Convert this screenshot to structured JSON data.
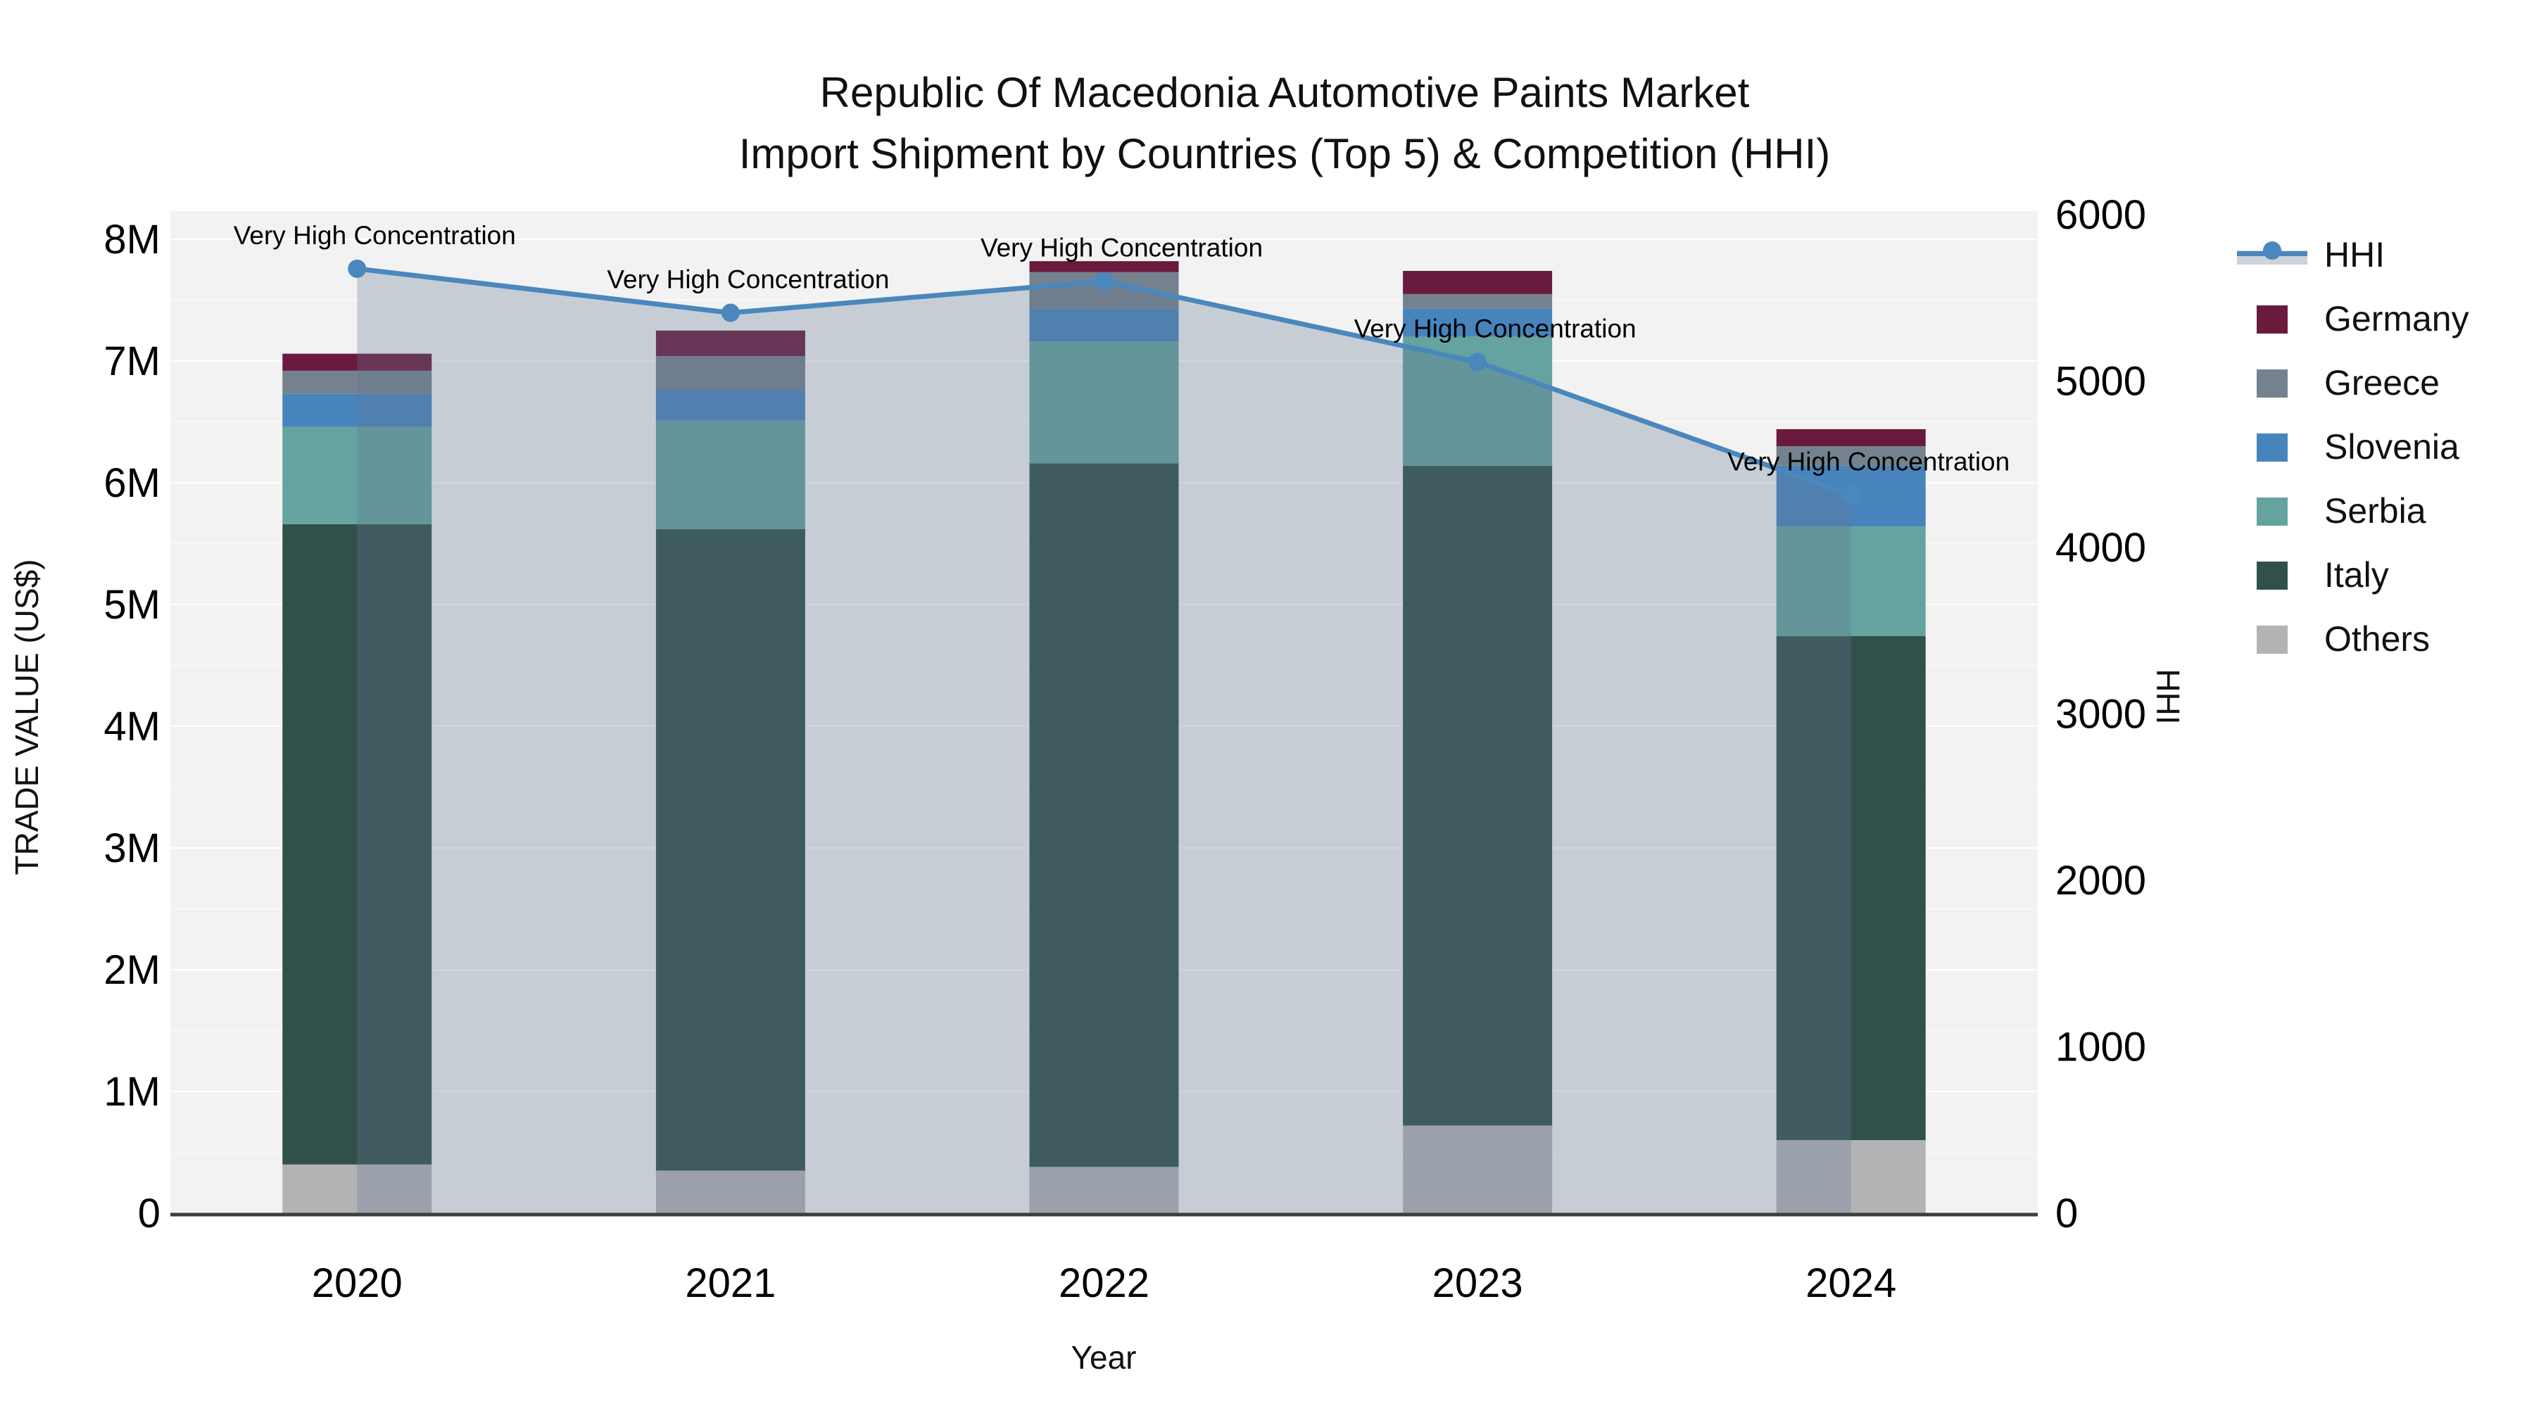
{
  "title": {
    "line1": "Republic Of Macedonia Automotive Paints Market",
    "line2": "Import Shipment by Countries (Top 5) & Competition (HHI)"
  },
  "axes": {
    "left": {
      "title": "TRADE VALUE (US$)",
      "tick_labels": [
        "0",
        "1M",
        "2M",
        "3M",
        "4M",
        "5M",
        "6M",
        "7M",
        "8M"
      ]
    },
    "right": {
      "title": "HHI",
      "tick_labels": [
        "0",
        "1000",
        "2000",
        "3000",
        "4000",
        "5000",
        "6000"
      ]
    },
    "x": {
      "title": "Year",
      "tick_labels": [
        "2020",
        "2021",
        "2022",
        "2023",
        "2024"
      ]
    }
  },
  "legend": [
    {
      "label": "HHI",
      "kind": "line"
    },
    {
      "label": "Germany",
      "kind": "swatch"
    },
    {
      "label": "Greece",
      "kind": "swatch"
    },
    {
      "label": "Slovenia",
      "kind": "swatch"
    },
    {
      "label": "Serbia",
      "kind": "swatch"
    },
    {
      "label": "Italy",
      "kind": "swatch"
    },
    {
      "label": "Others",
      "kind": "swatch"
    }
  ],
  "colors": {
    "Germany": "#691A3D",
    "Greece": "#74828F",
    "Slovenia": "#4884BC",
    "Serbia": "#64A3A0",
    "Italy": "#31504B",
    "Others": "#B2B3B5",
    "hhi_line": "#4A87BD",
    "hhi_area": "rgba(100,120,145,0.30)",
    "plot_bg": "#F2F2F2",
    "grid_major": "rgba(255,255,255,0.95)",
    "grid_minor": "rgba(255,255,255,0.55)",
    "axis_line": "#3D3D3D",
    "text": "#000000"
  },
  "chart_data": {
    "type": "bar",
    "stacked": true,
    "categories": [
      "2020",
      "2021",
      "2022",
      "2023",
      "2024"
    ],
    "unit": "million US$",
    "series": [
      {
        "name": "Others",
        "values": [
          0.4,
          0.35,
          0.38,
          0.72,
          0.6
        ]
      },
      {
        "name": "Italy",
        "values": [
          5.26,
          5.27,
          5.78,
          5.42,
          4.14
        ]
      },
      {
        "name": "Serbia",
        "values": [
          0.8,
          0.89,
          1.0,
          1.06,
          0.9
        ]
      },
      {
        "name": "Slovenia",
        "values": [
          0.27,
          0.25,
          0.27,
          0.23,
          0.5
        ]
      },
      {
        "name": "Greece",
        "values": [
          0.19,
          0.28,
          0.3,
          0.12,
          0.16
        ]
      },
      {
        "name": "Germany",
        "values": [
          0.14,
          0.21,
          0.09,
          0.19,
          0.14
        ]
      }
    ],
    "bar_totals_millions": [
      7.06,
      7.25,
      7.82,
      7.74,
      6.44
    ],
    "line_series": {
      "name": "HHI",
      "axis": "right",
      "fill": "tozeroy",
      "values": [
        5675,
        5410,
        5600,
        5115,
        4315
      ]
    },
    "point_annotations": [
      "Very High Concentration",
      "Very High Concentration",
      "Very High Concentration",
      "Very High Concentration",
      "Very High Concentration"
    ],
    "ylim_left_millions": [
      0,
      8
    ],
    "ylim_right": [
      0,
      6000
    ],
    "grid": "horizontal, major every 1M, minor every 0.5M",
    "legend_position": "right"
  }
}
